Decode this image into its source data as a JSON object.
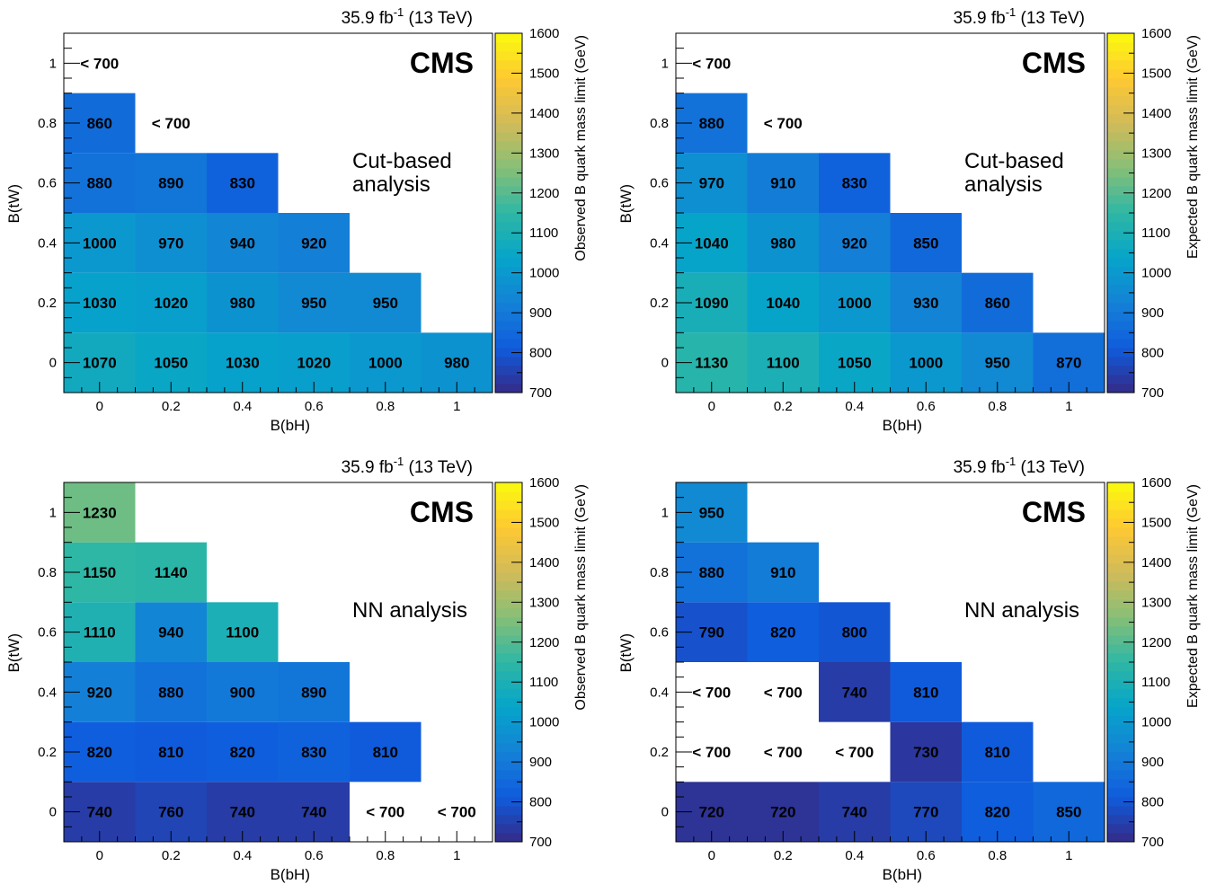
{
  "figure": {
    "experiment": "CMS",
    "lumi_main": "35.9 fb",
    "lumi_sup": "-1",
    "lumi_energy": "(13 TeV)"
  },
  "colorbar": {
    "min": 700,
    "max": 1600,
    "ticks": [
      "700",
      "800",
      "900",
      "1000",
      "1100",
      "1200",
      "1300",
      "1400",
      "1500",
      "1600"
    ],
    "palette": [
      "#352a87",
      "#0f5cdd",
      "#1481d6",
      "#06a4ca",
      "#2eb7a4",
      "#87bf77",
      "#d1bb59",
      "#fec832",
      "#f9fb0e"
    ]
  },
  "chart_data": [
    {
      "type": "heatmap",
      "title": "Cut-based analysis",
      "title_lines": [
        "Cut-based",
        "analysis"
      ],
      "xlabel": "B(bH)",
      "ylabel": "B(tW)",
      "zlabel": "Observed B quark mass limit (GeV)",
      "x_ticks": [
        "0",
        "0.2",
        "0.4",
        "0.6",
        "0.8",
        "1"
      ],
      "y_ticks": [
        "0",
        "0.2",
        "0.4",
        "0.6",
        "0.8",
        "1"
      ],
      "xlim": [
        -0.1,
        1.1
      ],
      "ylim": [
        -0.1,
        1.1
      ],
      "zlim": [
        700,
        1600
      ],
      "cells": [
        {
          "x": 0,
          "y": 0,
          "label": "1070",
          "value": 1070
        },
        {
          "x": 0.2,
          "y": 0,
          "label": "1050",
          "value": 1050
        },
        {
          "x": 0.4,
          "y": 0,
          "label": "1030",
          "value": 1030
        },
        {
          "x": 0.6,
          "y": 0,
          "label": "1020",
          "value": 1020
        },
        {
          "x": 0.8,
          "y": 0,
          "label": "1000",
          "value": 1000
        },
        {
          "x": 1,
          "y": 0,
          "label": "980",
          "value": 980
        },
        {
          "x": 0,
          "y": 0.2,
          "label": "1030",
          "value": 1030
        },
        {
          "x": 0.2,
          "y": 0.2,
          "label": "1020",
          "value": 1020
        },
        {
          "x": 0.4,
          "y": 0.2,
          "label": "980",
          "value": 980
        },
        {
          "x": 0.6,
          "y": 0.2,
          "label": "950",
          "value": 950
        },
        {
          "x": 0.8,
          "y": 0.2,
          "label": "950",
          "value": 950
        },
        {
          "x": 0,
          "y": 0.4,
          "label": "1000",
          "value": 1000
        },
        {
          "x": 0.2,
          "y": 0.4,
          "label": "970",
          "value": 970
        },
        {
          "x": 0.4,
          "y": 0.4,
          "label": "940",
          "value": 940
        },
        {
          "x": 0.6,
          "y": 0.4,
          "label": "920",
          "value": 920
        },
        {
          "x": 0,
          "y": 0.6,
          "label": "880",
          "value": 880
        },
        {
          "x": 0.2,
          "y": 0.6,
          "label": "890",
          "value": 890
        },
        {
          "x": 0.4,
          "y": 0.6,
          "label": "830",
          "value": 830
        },
        {
          "x": 0,
          "y": 0.8,
          "label": "860",
          "value": 860
        },
        {
          "x": 0.2,
          "y": 0.8,
          "label": "< 700",
          "value": null
        },
        {
          "x": 0,
          "y": 1,
          "label": "< 700",
          "value": null
        }
      ]
    },
    {
      "type": "heatmap",
      "title": "Cut-based analysis",
      "title_lines": [
        "Cut-based",
        "analysis"
      ],
      "xlabel": "B(bH)",
      "ylabel": "B(tW)",
      "zlabel": "Expected B quark mass limit (GeV)",
      "x_ticks": [
        "0",
        "0.2",
        "0.4",
        "0.6",
        "0.8",
        "1"
      ],
      "y_ticks": [
        "0",
        "0.2",
        "0.4",
        "0.6",
        "0.8",
        "1"
      ],
      "xlim": [
        -0.1,
        1.1
      ],
      "ylim": [
        -0.1,
        1.1
      ],
      "zlim": [
        700,
        1600
      ],
      "cells": [
        {
          "x": 0,
          "y": 0,
          "label": "1130",
          "value": 1130
        },
        {
          "x": 0.2,
          "y": 0,
          "label": "1100",
          "value": 1100
        },
        {
          "x": 0.4,
          "y": 0,
          "label": "1050",
          "value": 1050
        },
        {
          "x": 0.6,
          "y": 0,
          "label": "1000",
          "value": 1000
        },
        {
          "x": 0.8,
          "y": 0,
          "label": "950",
          "value": 950
        },
        {
          "x": 1,
          "y": 0,
          "label": "870",
          "value": 870
        },
        {
          "x": 0,
          "y": 0.2,
          "label": "1090",
          "value": 1090
        },
        {
          "x": 0.2,
          "y": 0.2,
          "label": "1040",
          "value": 1040
        },
        {
          "x": 0.4,
          "y": 0.2,
          "label": "1000",
          "value": 1000
        },
        {
          "x": 0.6,
          "y": 0.2,
          "label": "930",
          "value": 930
        },
        {
          "x": 0.8,
          "y": 0.2,
          "label": "860",
          "value": 860
        },
        {
          "x": 0,
          "y": 0.4,
          "label": "1040",
          "value": 1040
        },
        {
          "x": 0.2,
          "y": 0.4,
          "label": "980",
          "value": 980
        },
        {
          "x": 0.4,
          "y": 0.4,
          "label": "920",
          "value": 920
        },
        {
          "x": 0.6,
          "y": 0.4,
          "label": "850",
          "value": 850
        },
        {
          "x": 0,
          "y": 0.6,
          "label": "970",
          "value": 970
        },
        {
          "x": 0.2,
          "y": 0.6,
          "label": "910",
          "value": 910
        },
        {
          "x": 0.4,
          "y": 0.6,
          "label": "830",
          "value": 830
        },
        {
          "x": 0,
          "y": 0.8,
          "label": "880",
          "value": 880
        },
        {
          "x": 0.2,
          "y": 0.8,
          "label": "< 700",
          "value": null
        },
        {
          "x": 0,
          "y": 1,
          "label": "< 700",
          "value": null
        }
      ]
    },
    {
      "type": "heatmap",
      "title": "NN analysis",
      "title_lines": [
        "NN analysis"
      ],
      "xlabel": "B(bH)",
      "ylabel": "B(tW)",
      "zlabel": "Observed B quark mass limit (GeV)",
      "x_ticks": [
        "0",
        "0.2",
        "0.4",
        "0.6",
        "0.8",
        "1"
      ],
      "y_ticks": [
        "0",
        "0.2",
        "0.4",
        "0.6",
        "0.8",
        "1"
      ],
      "xlim": [
        -0.1,
        1.1
      ],
      "ylim": [
        -0.1,
        1.1
      ],
      "zlim": [
        700,
        1600
      ],
      "cells": [
        {
          "x": 0,
          "y": 0,
          "label": "740",
          "value": 740
        },
        {
          "x": 0.2,
          "y": 0,
          "label": "760",
          "value": 760
        },
        {
          "x": 0.4,
          "y": 0,
          "label": "740",
          "value": 740
        },
        {
          "x": 0.6,
          "y": 0,
          "label": "740",
          "value": 740
        },
        {
          "x": 0.8,
          "y": 0,
          "label": "< 700",
          "value": null
        },
        {
          "x": 1,
          "y": 0,
          "label": "< 700",
          "value": null
        },
        {
          "x": 0,
          "y": 0.2,
          "label": "820",
          "value": 820
        },
        {
          "x": 0.2,
          "y": 0.2,
          "label": "810",
          "value": 810
        },
        {
          "x": 0.4,
          "y": 0.2,
          "label": "820",
          "value": 820
        },
        {
          "x": 0.6,
          "y": 0.2,
          "label": "830",
          "value": 830
        },
        {
          "x": 0.8,
          "y": 0.2,
          "label": "810",
          "value": 810
        },
        {
          "x": 0,
          "y": 0.4,
          "label": "920",
          "value": 920
        },
        {
          "x": 0.2,
          "y": 0.4,
          "label": "880",
          "value": 880
        },
        {
          "x": 0.4,
          "y": 0.4,
          "label": "900",
          "value": 900
        },
        {
          "x": 0.6,
          "y": 0.4,
          "label": "890",
          "value": 890
        },
        {
          "x": 0,
          "y": 0.6,
          "label": "1110",
          "value": 1110
        },
        {
          "x": 0.2,
          "y": 0.6,
          "label": "940",
          "value": 940
        },
        {
          "x": 0.4,
          "y": 0.6,
          "label": "1100",
          "value": 1100
        },
        {
          "x": 0,
          "y": 0.8,
          "label": "1150",
          "value": 1150
        },
        {
          "x": 0.2,
          "y": 0.8,
          "label": "1140",
          "value": 1140
        },
        {
          "x": 0,
          "y": 1,
          "label": "1230",
          "value": 1230
        }
      ]
    },
    {
      "type": "heatmap",
      "title": "NN analysis",
      "title_lines": [
        "NN analysis"
      ],
      "xlabel": "B(bH)",
      "ylabel": "B(tW)",
      "zlabel": "Expected B quark mass limit (GeV)",
      "x_ticks": [
        "0",
        "0.2",
        "0.4",
        "0.6",
        "0.8",
        "1"
      ],
      "y_ticks": [
        "0",
        "0.2",
        "0.4",
        "0.6",
        "0.8",
        "1"
      ],
      "xlim": [
        -0.1,
        1.1
      ],
      "ylim": [
        -0.1,
        1.1
      ],
      "zlim": [
        700,
        1600
      ],
      "cells": [
        {
          "x": 0,
          "y": 0,
          "label": "720",
          "value": 720
        },
        {
          "x": 0.2,
          "y": 0,
          "label": "720",
          "value": 720
        },
        {
          "x": 0.4,
          "y": 0,
          "label": "740",
          "value": 740
        },
        {
          "x": 0.6,
          "y": 0,
          "label": "770",
          "value": 770
        },
        {
          "x": 0.8,
          "y": 0,
          "label": "820",
          "value": 820
        },
        {
          "x": 1,
          "y": 0,
          "label": "850",
          "value": 850
        },
        {
          "x": 0,
          "y": 0.2,
          "label": "< 700",
          "value": null
        },
        {
          "x": 0.2,
          "y": 0.2,
          "label": "< 700",
          "value": null
        },
        {
          "x": 0.4,
          "y": 0.2,
          "label": "< 700",
          "value": null
        },
        {
          "x": 0.6,
          "y": 0.2,
          "label": "730",
          "value": 730
        },
        {
          "x": 0.8,
          "y": 0.2,
          "label": "810",
          "value": 810
        },
        {
          "x": 0,
          "y": 0.4,
          "label": "< 700",
          "value": null
        },
        {
          "x": 0.2,
          "y": 0.4,
          "label": "< 700",
          "value": null
        },
        {
          "x": 0.4,
          "y": 0.4,
          "label": "740",
          "value": 740
        },
        {
          "x": 0.6,
          "y": 0.4,
          "label": "810",
          "value": 810
        },
        {
          "x": 0,
          "y": 0.6,
          "label": "790",
          "value": 790
        },
        {
          "x": 0.2,
          "y": 0.6,
          "label": "820",
          "value": 820
        },
        {
          "x": 0.4,
          "y": 0.6,
          "label": "800",
          "value": 800
        },
        {
          "x": 0,
          "y": 0.8,
          "label": "880",
          "value": 880
        },
        {
          "x": 0.2,
          "y": 0.8,
          "label": "910",
          "value": 910
        },
        {
          "x": 0,
          "y": 1,
          "label": "950",
          "value": 950
        }
      ]
    }
  ]
}
